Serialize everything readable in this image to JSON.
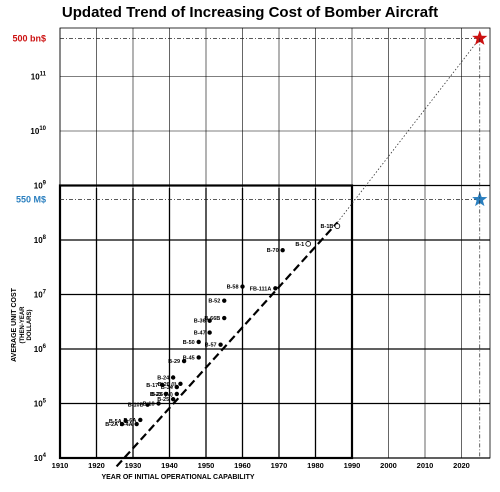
{
  "chart_data": {
    "type": "scatter",
    "title": "Updated Trend of Increasing Cost of Bomber Aircraft",
    "xlabel": "YEAR OF INITIAL OPERATIONAL CAPABILITY",
    "ylabel": "AVERAGE UNIT COST",
    "ylabel_sub1": "(THEN-YEAR",
    "ylabel_sub2": "DOLLARS)",
    "x_ticks": [
      "1910",
      "1920",
      "1930",
      "1940",
      "1950",
      "1960",
      "1970",
      "1980",
      "1990",
      "2000",
      "2010",
      "2020"
    ],
    "y_ticks": [
      {
        "base": "10",
        "exp": "4",
        "value": 10000
      },
      {
        "base": "10",
        "exp": "5",
        "value": 100000
      },
      {
        "base": "10",
        "exp": "6",
        "value": 1000000
      },
      {
        "base": "10",
        "exp": "7",
        "value": 10000000
      },
      {
        "base": "10",
        "exp": "8",
        "value": 100000000
      },
      {
        "base": "10",
        "exp": "9",
        "value": 1000000000
      },
      {
        "base": "10",
        "exp": "10",
        "value": 10000000000
      },
      {
        "base": "10",
        "exp": "11",
        "value": 100000000000
      }
    ],
    "xlim": [
      1910,
      2027
    ],
    "ylim_log10": [
      4,
      11.8
    ],
    "y_scale": "log",
    "grid": true,
    "points": [
      {
        "label": "B-2A",
        "x": 1927,
        "y": 42000,
        "filled": true
      },
      {
        "label": "B-5A",
        "x": 1928,
        "y": 48000,
        "filled": true
      },
      {
        "label": "B-4A",
        "x": 1931,
        "y": 42000,
        "filled": true
      },
      {
        "label": "B-6A",
        "x": 1932,
        "y": 50000,
        "filled": true
      },
      {
        "label": "B-10B",
        "x": 1934,
        "y": 95000,
        "filled": true
      },
      {
        "label": "B-18",
        "x": 1937,
        "y": 100000,
        "filled": true
      },
      {
        "label": "B-23",
        "x": 1939,
        "y": 150000,
        "filled": true
      },
      {
        "label": "B-17",
        "x": 1938,
        "y": 220000,
        "filled": true
      },
      {
        "label": "B-25",
        "x": 1941,
        "y": 120000,
        "filled": true
      },
      {
        "label": "B-24",
        "x": 1941,
        "y": 300000,
        "filled": true
      },
      {
        "label": "B-34",
        "x": 1942,
        "y": 200000,
        "filled": true
      },
      {
        "label": "B-26 (I)",
        "x": 1943,
        "y": 230000,
        "filled": true
      },
      {
        "label": "B-26 (M)",
        "x": 1942,
        "y": 150000,
        "filled": true
      },
      {
        "label": "B-29",
        "x": 1944,
        "y": 600000,
        "filled": true
      },
      {
        "label": "B-45",
        "x": 1948,
        "y": 700000,
        "filled": true
      },
      {
        "label": "B-50",
        "x": 1948,
        "y": 1350000,
        "filled": true
      },
      {
        "label": "B-47",
        "x": 1951,
        "y": 2000000,
        "filled": true
      },
      {
        "label": "B-57",
        "x": 1954,
        "y": 1200000,
        "filled": true
      },
      {
        "label": "B-36",
        "x": 1951,
        "y": 3300000,
        "filled": true
      },
      {
        "label": "B-66B",
        "x": 1955,
        "y": 3700000,
        "filled": true
      },
      {
        "label": "B-52",
        "x": 1955,
        "y": 7700000,
        "filled": true
      },
      {
        "label": "B-58",
        "x": 1960,
        "y": 14000000,
        "filled": true
      },
      {
        "label": "FB-111A",
        "x": 1969,
        "y": 13000000,
        "filled": true
      },
      {
        "label": "B-70",
        "x": 1971,
        "y": 65000000,
        "filled": true
      },
      {
        "label": "B-1",
        "x": 1978,
        "y": 85000000,
        "filled": false
      },
      {
        "label": "B-1B",
        "x": 1986,
        "y": 180000000,
        "filled": false
      }
    ],
    "trend_line": {
      "x": [
        1925.5,
        1986
      ],
      "y": [
        7000,
        210000000
      ]
    },
    "extrapolation": {
      "x": [
        1986,
        2025
      ],
      "y": [
        210000000,
        500000000000
      ]
    },
    "annotations": [
      {
        "label": "500 bn$",
        "x": 2025,
        "y": 500000000000,
        "color": "#cc1111"
      },
      {
        "label": "550 M$",
        "x": 2025,
        "y": 550000000,
        "color": "#2a7fbf"
      }
    ]
  }
}
